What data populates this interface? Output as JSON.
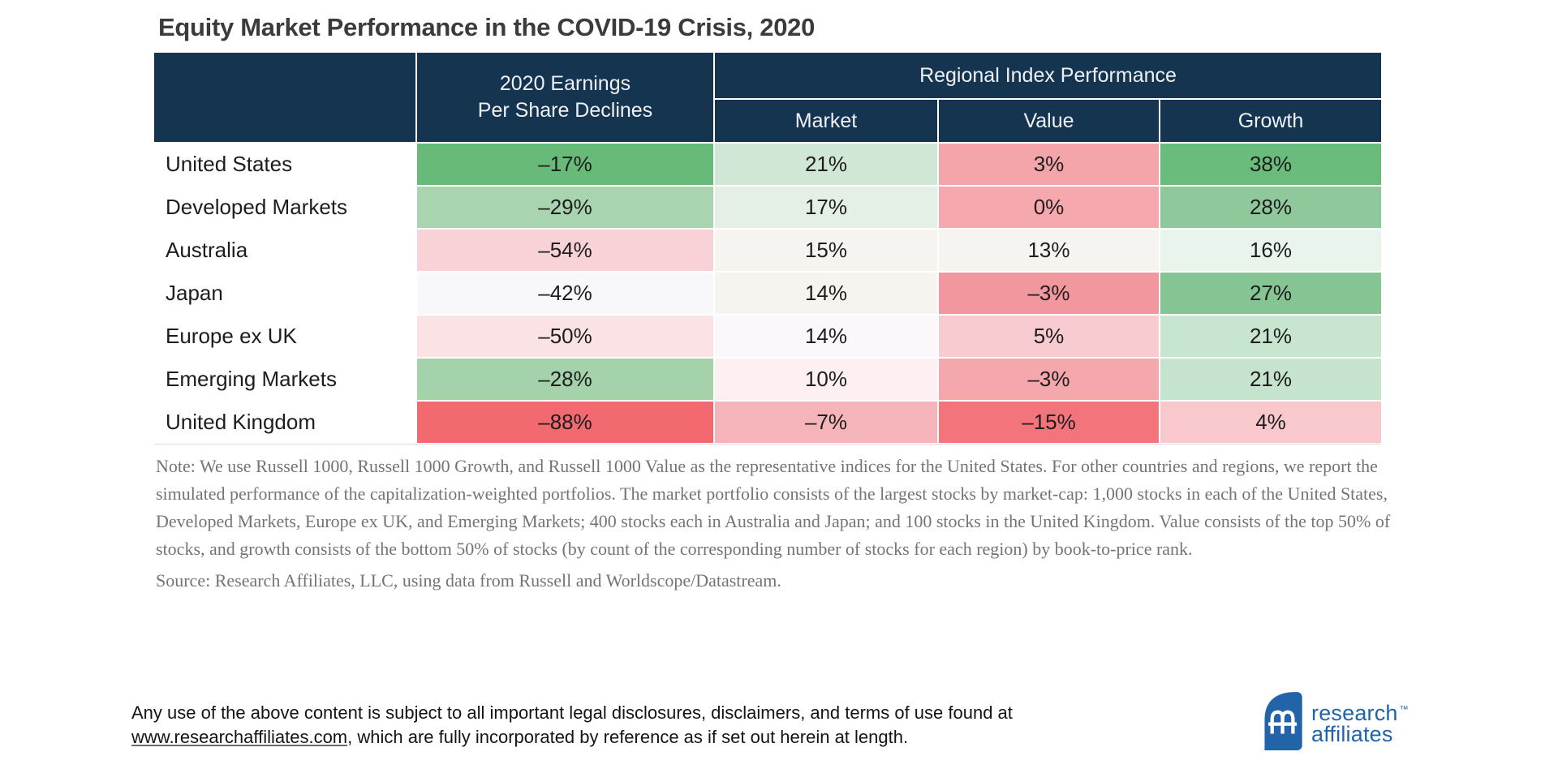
{
  "title": "Equity Market Performance in the COVID-19 Crisis, 2020",
  "colors": {
    "header_navy": "#15344f",
    "logo_blue": "#2264a7",
    "note_gray": "#747474",
    "positive_green_strong": "#68ba79",
    "negative_red_strong": "#f26970"
  },
  "table": {
    "eps_header_line1": "2020 Earnings",
    "eps_header_line2": "Per Share Declines",
    "regional_header": "Regional Index Performance",
    "subheaders": [
      "Market",
      "Value",
      "Growth"
    ],
    "rows": [
      {
        "label": "United States",
        "cells": [
          {
            "v": "–17%",
            "bg": "#68ba79"
          },
          {
            "v": "21%",
            "bg": "#d0e7d6"
          },
          {
            "v": "3%",
            "bg": "#f4a5aa"
          },
          {
            "v": "38%",
            "bg": "#6abc7d"
          }
        ]
      },
      {
        "label": "Developed Markets",
        "cells": [
          {
            "v": "–29%",
            "bg": "#a8d4af"
          },
          {
            "v": "17%",
            "bg": "#e4f0e6"
          },
          {
            "v": "0%",
            "bg": "#f5a9af"
          },
          {
            "v": "28%",
            "bg": "#8fc99b"
          }
        ]
      },
      {
        "label": "Australia",
        "cells": [
          {
            "v": "–54%",
            "bg": "#f8d2d6"
          },
          {
            "v": "15%",
            "bg": "#f5f4f0"
          },
          {
            "v": "13%",
            "bg": "#f5f4f0"
          },
          {
            "v": "16%",
            "bg": "#e9f5ec"
          }
        ]
      },
      {
        "label": "Japan",
        "cells": [
          {
            "v": "–42%",
            "bg": "#f8f7fa"
          },
          {
            "v": "14%",
            "bg": "#f5f4ef"
          },
          {
            "v": "–3%",
            "bg": "#f3979e"
          },
          {
            "v": "27%",
            "bg": "#85c593"
          }
        ]
      },
      {
        "label": "Europe ex UK",
        "cells": [
          {
            "v": "–50%",
            "bg": "#fae2e5"
          },
          {
            "v": "14%",
            "bg": "#faf8fa"
          },
          {
            "v": "5%",
            "bg": "#f8cbd1"
          },
          {
            "v": "21%",
            "bg": "#c8e5d0"
          }
        ]
      },
      {
        "label": "Emerging Markets",
        "cells": [
          {
            "v": "–28%",
            "bg": "#a4d2ab"
          },
          {
            "v": "10%",
            "bg": "#fdeff2"
          },
          {
            "v": "–3%",
            "bg": "#f4a7ac"
          },
          {
            "v": "21%",
            "bg": "#c5e3cd"
          }
        ]
      },
      {
        "label": "United Kingdom",
        "cells": [
          {
            "v": "–88%",
            "bg": "#f26970"
          },
          {
            "v": "–7%",
            "bg": "#f5b4b9"
          },
          {
            "v": "–15%",
            "bg": "#f3747b"
          },
          {
            "v": "4%",
            "bg": "#f8c8cd"
          }
        ]
      }
    ]
  },
  "note": {
    "body": "Note: We use Russell 1000, Russell 1000 Growth, and Russell 1000 Value as the representative indices for the United States. For other countries and regions, we report the simulated performance of the capitalization-weighted portfolios. The market portfolio consists of the largest stocks by market-cap: 1,000 stocks in each of the United States, Developed Markets, Europe ex UK, and Emerging Markets; 400 stocks each in Australia and Japan; and 100 stocks in the United Kingdom. Value consists of the top 50% of stocks, and growth consists of the bottom 50% of stocks (by count of the corresponding number of stocks for each region) by book-to-price rank.",
    "source": "Source: Research Affiliates, LLC, using data from Russell and Worldscope/Datastream."
  },
  "footer": {
    "text_before_link": "Any use of the above content is subject to all important legal disclosures, disclaimers, and terms of use found at",
    "link": "www.researchaffiliates.com",
    "text_after_link": ", which are fully incorporated by reference as if set out herein at length."
  },
  "logo": {
    "line1": "research",
    "line2": "affiliates",
    "trademark": "™"
  },
  "chart_data": {
    "type": "table",
    "title": "Equity Market Performance in the COVID-19 Crisis, 2020",
    "categories": [
      "United States",
      "Developed Markets",
      "Australia",
      "Japan",
      "Europe ex UK",
      "Emerging Markets",
      "United Kingdom"
    ],
    "series": [
      {
        "name": "2020 Earnings Per Share Declines",
        "values": [
          -17,
          -29,
          -54,
          -42,
          -50,
          -28,
          -88
        ]
      },
      {
        "name": "Regional Index Performance — Market",
        "values": [
          21,
          17,
          15,
          14,
          14,
          10,
          -7
        ]
      },
      {
        "name": "Regional Index Performance — Value",
        "values": [
          3,
          0,
          13,
          -3,
          5,
          -3,
          -15
        ]
      },
      {
        "name": "Regional Index Performance — Growth",
        "values": [
          38,
          28,
          16,
          27,
          21,
          21,
          4
        ]
      }
    ],
    "units": "percent",
    "layout_hints": "heatmap-style cell shading: green = better, red = worse; row labels left column; two-tier column headers"
  }
}
